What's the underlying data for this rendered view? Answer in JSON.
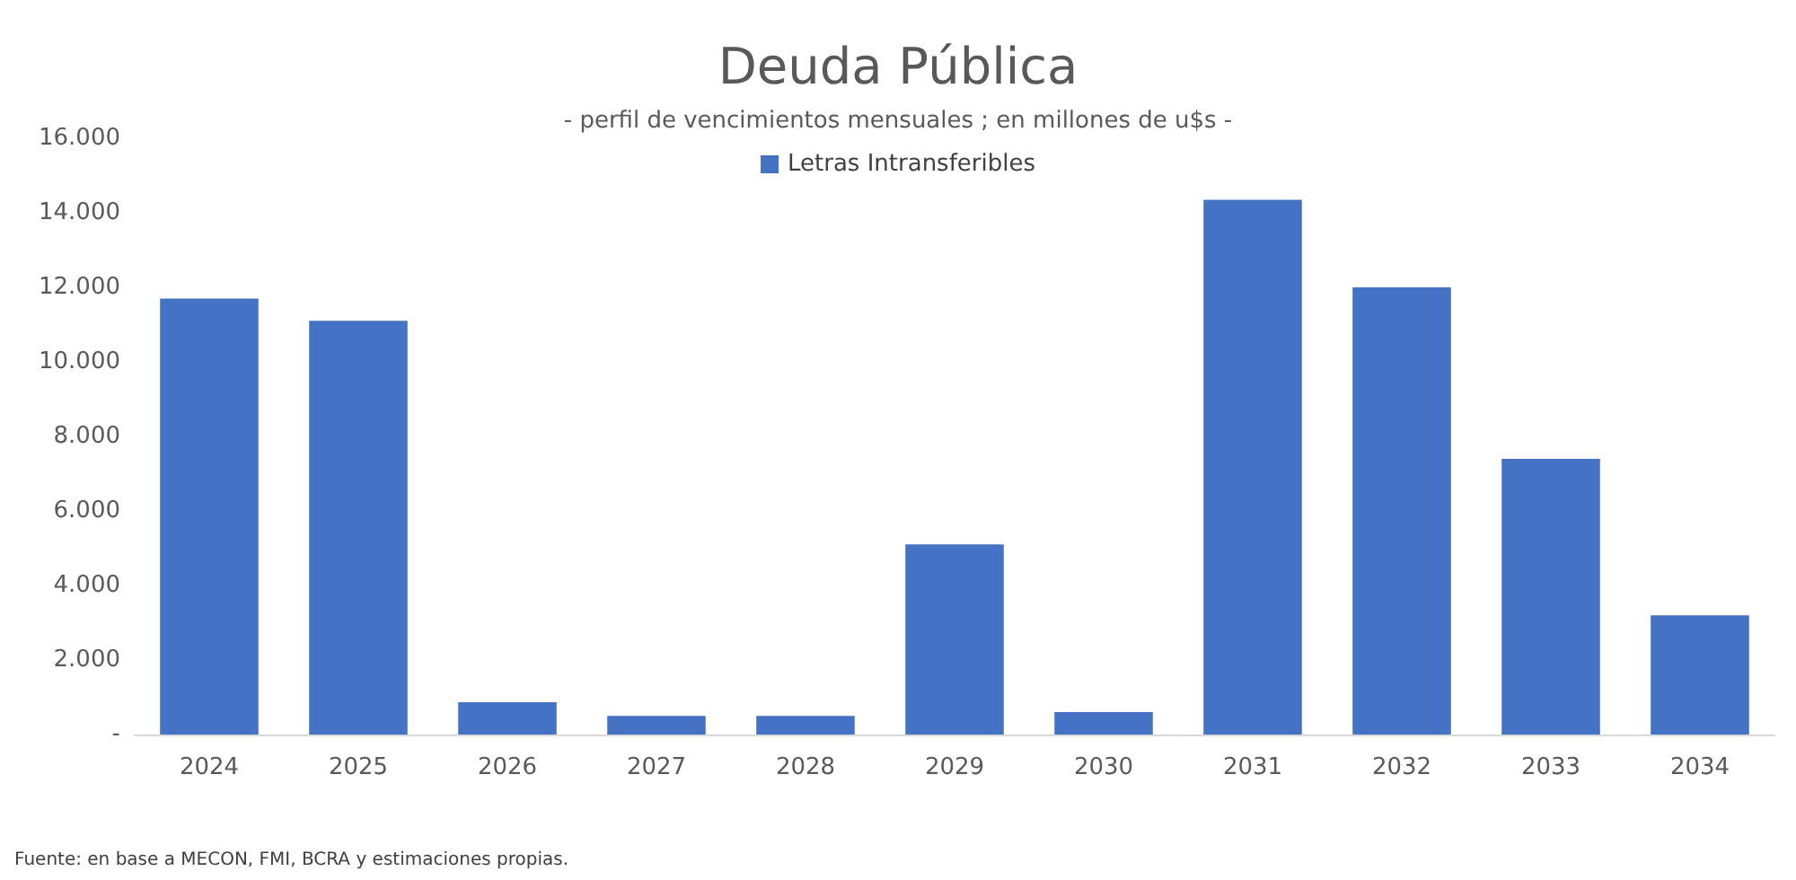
{
  "chart_data": {
    "type": "bar",
    "title": "Deuda Pública",
    "subtitle": "- perfil de vencimientos mensuales ; en millones de u$s -",
    "categories": [
      "2024",
      "2025",
      "2026",
      "2027",
      "2028",
      "2029",
      "2030",
      "2031",
      "2032",
      "2033",
      "2034"
    ],
    "series": [
      {
        "name": "Letras Intransferibles",
        "color": "#4472c4",
        "values": [
          11700,
          11100,
          870,
          500,
          500,
          5100,
          600,
          14350,
          12000,
          7400,
          3200
        ]
      }
    ],
    "ylim": [
      0,
      16000
    ],
    "yticks": [
      {
        "value": 0,
        "label": "-"
      },
      {
        "value": 2000,
        "label": "2.000"
      },
      {
        "value": 4000,
        "label": "4.000"
      },
      {
        "value": 6000,
        "label": "6.000"
      },
      {
        "value": 8000,
        "label": "8.000"
      },
      {
        "value": 10000,
        "label": "10.000"
      },
      {
        "value": 12000,
        "label": "12.000"
      },
      {
        "value": 14000,
        "label": "14.000"
      },
      {
        "value": 16000,
        "label": "16.000"
      }
    ],
    "grid": false,
    "legend": "top",
    "annotations": [
      "Fuente: en base a MECON, FMI, BCRA y estimaciones propias."
    ]
  }
}
